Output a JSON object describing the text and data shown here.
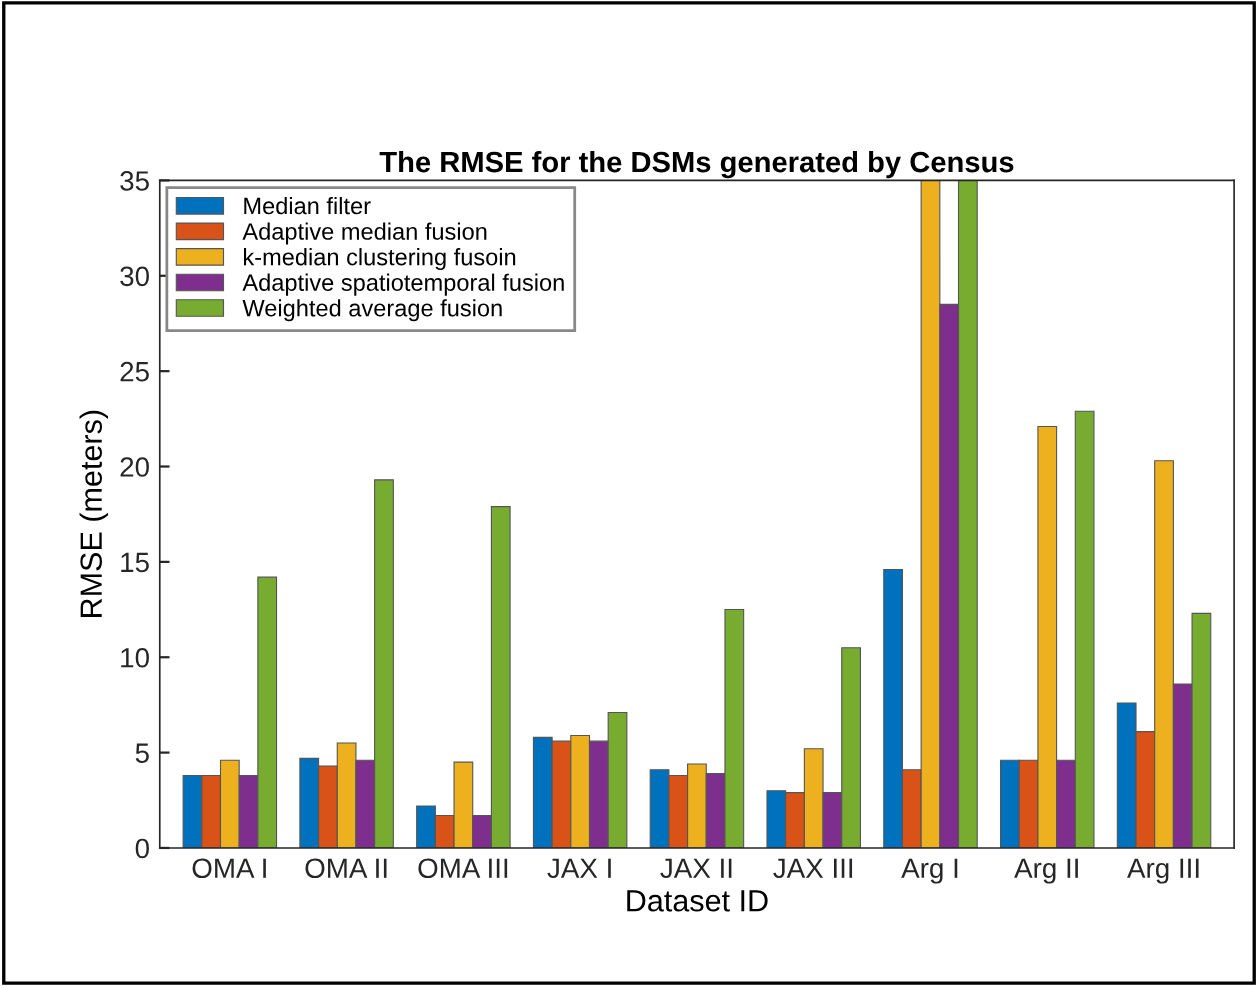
{
  "chart_data": {
    "type": "bar",
    "title": "The RMSE for the DSMs generated by Census",
    "xlabel": "Dataset ID",
    "ylabel": "RMSE (meters)",
    "categories": [
      "OMA I",
      "OMA II",
      "OMA III",
      "JAX I",
      "JAX II",
      "JAX III",
      "Arg I",
      "Arg II",
      "Arg III"
    ],
    "series": [
      {
        "name": "Median filter",
        "color": "#0072bd",
        "values": [
          3.8,
          4.7,
          2.2,
          5.8,
          4.1,
          3.0,
          14.6,
          4.6,
          7.6
        ]
      },
      {
        "name": "Adaptive median fusion",
        "color": "#d95319",
        "values": [
          3.8,
          4.3,
          1.7,
          5.6,
          3.8,
          2.9,
          4.1,
          4.6,
          6.1
        ]
      },
      {
        "name": "k-median clustering fusoin",
        "color": "#edb120",
        "values": [
          4.6,
          5.5,
          4.5,
          5.9,
          4.4,
          5.2,
          35,
          22.1,
          20.3
        ]
      },
      {
        "name": "Adaptive spatiotemporal fusion",
        "color": "#7e2f8e",
        "values": [
          3.8,
          4.6,
          1.7,
          5.6,
          3.9,
          2.9,
          28.5,
          4.6,
          8.6
        ]
      },
      {
        "name": "Weighted average fusion",
        "color": "#77ac30",
        "values": [
          14.2,
          19.3,
          17.9,
          7.1,
          12.5,
          10.5,
          35,
          22.9,
          12.3
        ]
      }
    ],
    "ylim": [
      0,
      35
    ],
    "yticks": [
      0,
      5,
      10,
      15,
      20,
      25,
      30,
      35
    ],
    "grid": false,
    "legend": "top left"
  }
}
